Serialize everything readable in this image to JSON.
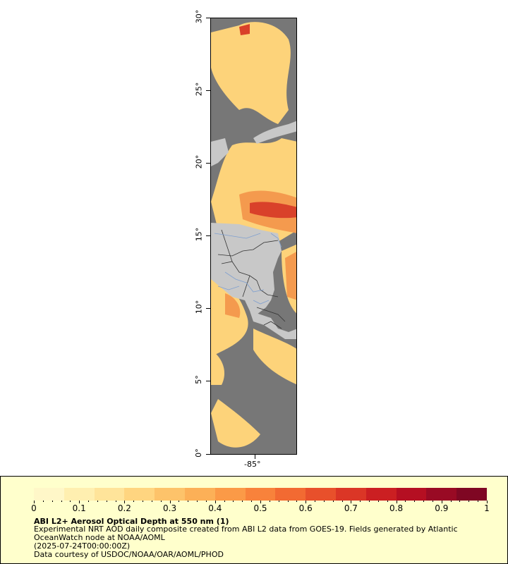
{
  "map": {
    "lat_labels": [
      "30°",
      "25°",
      "20°",
      "15°",
      "10°",
      "5°",
      "0°"
    ],
    "lon_label": "-85°",
    "colors": {
      "background_no_data": "#777777",
      "land": "#c8c8c8",
      "borders": "#333333",
      "rivers": "#7f9fcf"
    }
  },
  "legend": {
    "tick_labels": [
      "0",
      "0.1",
      "0.2",
      "0.3",
      "0.4",
      "0.5",
      "0.6",
      "0.7",
      "0.8",
      "0.9",
      "1"
    ],
    "title": "ABI L2+ Aerosol Optical Depth at 550 nm (1)",
    "line1": "Experimental NRT AOD daily composite created from ABI L2 data from GOES-19. Fields generated by Atlantic OceanWatch node at NOAA/AOML",
    "line2": "(2025-07-24T00:00:00Z)",
    "line3": "Data courtesy of USDOC/NOAA/OAR/AOML/PHOD",
    "colorscale": [
      "#fff7c8",
      "#ffefb0",
      "#ffe49a",
      "#ffd580",
      "#fdc36a",
      "#fcb057",
      "#fb9a47",
      "#f8823b",
      "#f26a32",
      "#e8502b",
      "#db3626",
      "#cb1f22",
      "#b50f22",
      "#990a24",
      "#7f0723"
    ]
  }
}
